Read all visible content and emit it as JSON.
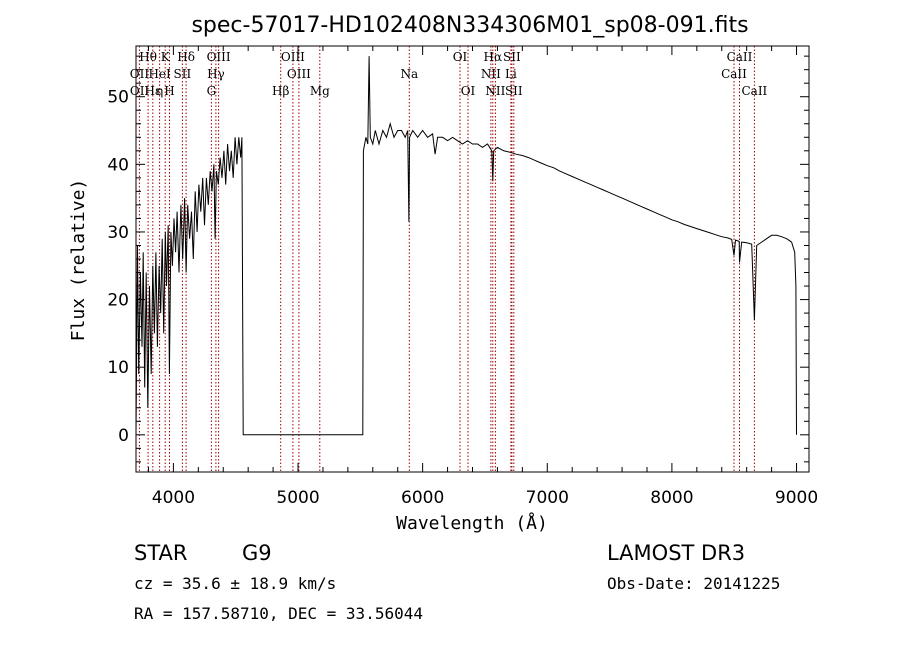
{
  "chart_data": {
    "type": "line",
    "title": "spec-57017-HD102408N334306M01_sp08-091.fits",
    "xlabel": "Wavelength (Å)",
    "ylabel": "Flux (relative)",
    "xlim": [
      3700,
      9100
    ],
    "ylim": [
      -5.5,
      57.5
    ],
    "xticks": [
      4000,
      5000,
      6000,
      7000,
      8000,
      9000
    ],
    "yticks": [
      0,
      10,
      20,
      30,
      40,
      50
    ],
    "series": [
      {
        "name": "flux",
        "points": [
          [
            3700,
            0
          ],
          [
            3712,
            28
          ],
          [
            3722,
            9
          ],
          [
            3735,
            24
          ],
          [
            3748,
            13
          ],
          [
            3758,
            27
          ],
          [
            3770,
            7
          ],
          [
            3782,
            24
          ],
          [
            3795,
            4
          ],
          [
            3808,
            22
          ],
          [
            3822,
            9
          ],
          [
            3835,
            25
          ],
          [
            3848,
            15
          ],
          [
            3860,
            27
          ],
          [
            3872,
            13
          ],
          [
            3885,
            25
          ],
          [
            3898,
            18
          ],
          [
            3910,
            29
          ],
          [
            3922,
            15
          ],
          [
            3935,
            30
          ],
          [
            3945,
            22
          ],
          [
            3958,
            31
          ],
          [
            3968,
            9
          ],
          [
            3980,
            30
          ],
          [
            3992,
            25
          ],
          [
            4005,
            32
          ],
          [
            4018,
            27
          ],
          [
            4030,
            33
          ],
          [
            4045,
            24
          ],
          [
            4060,
            34
          ],
          [
            4075,
            26
          ],
          [
            4090,
            35
          ],
          [
            4102,
            24
          ],
          [
            4115,
            34
          ],
          [
            4130,
            29
          ],
          [
            4145,
            33
          ],
          [
            4160,
            26
          ],
          [
            4175,
            36
          ],
          [
            4190,
            30
          ],
          [
            4205,
            37
          ],
          [
            4220,
            33
          ],
          [
            4235,
            38
          ],
          [
            4250,
            31
          ],
          [
            4265,
            38
          ],
          [
            4280,
            34
          ],
          [
            4295,
            39
          ],
          [
            4310,
            36
          ],
          [
            4325,
            40
          ],
          [
            4335,
            29
          ],
          [
            4345,
            39
          ],
          [
            4360,
            37
          ],
          [
            4375,
            41
          ],
          [
            4390,
            38
          ],
          [
            4405,
            42
          ],
          [
            4420,
            37
          ],
          [
            4435,
            43
          ],
          [
            4450,
            39
          ],
          [
            4465,
            42
          ],
          [
            4480,
            38
          ],
          [
            4495,
            44
          ],
          [
            4510,
            40
          ],
          [
            4525,
            44
          ],
          [
            4540,
            41
          ],
          [
            4550,
            44
          ],
          [
            4560,
            0
          ],
          [
            5520,
            0
          ],
          [
            5525,
            42
          ],
          [
            5545,
            44
          ],
          [
            5560,
            43
          ],
          [
            5570,
            56
          ],
          [
            5580,
            44
          ],
          [
            5600,
            43
          ],
          [
            5620,
            45
          ],
          [
            5650,
            43
          ],
          [
            5680,
            45
          ],
          [
            5710,
            44
          ],
          [
            5740,
            46
          ],
          [
            5770,
            44
          ],
          [
            5800,
            45
          ],
          [
            5830,
            45
          ],
          [
            5860,
            44
          ],
          [
            5880,
            45
          ],
          [
            5890,
            31.5
          ],
          [
            5895,
            44
          ],
          [
            5920,
            45
          ],
          [
            5960,
            44
          ],
          [
            6000,
            45
          ],
          [
            6040,
            44
          ],
          [
            6080,
            44.5
          ],
          [
            6100,
            41.5
          ],
          [
            6120,
            44
          ],
          [
            6160,
            44
          ],
          [
            6200,
            43.5
          ],
          [
            6240,
            44
          ],
          [
            6280,
            43.5
          ],
          [
            6320,
            43
          ],
          [
            6360,
            43.5
          ],
          [
            6400,
            43
          ],
          [
            6440,
            43
          ],
          [
            6480,
            42.5
          ],
          [
            6520,
            43
          ],
          [
            6555,
            42
          ],
          [
            6563,
            37.5
          ],
          [
            6570,
            42
          ],
          [
            6600,
            42.5
          ],
          [
            6650,
            42
          ],
          [
            6700,
            41.8
          ],
          [
            6750,
            41.5
          ],
          [
            6800,
            41.3
          ],
          [
            6850,
            41
          ],
          [
            6900,
            40.6
          ],
          [
            6950,
            40.2
          ],
          [
            7000,
            39.8
          ],
          [
            7050,
            39.5
          ],
          [
            7100,
            39
          ],
          [
            7150,
            38.6
          ],
          [
            7200,
            38.2
          ],
          [
            7250,
            37.8
          ],
          [
            7300,
            37.4
          ],
          [
            7350,
            37
          ],
          [
            7400,
            36.6
          ],
          [
            7450,
            36.2
          ],
          [
            7500,
            35.8
          ],
          [
            7550,
            35.4
          ],
          [
            7600,
            35
          ],
          [
            7650,
            34.6
          ],
          [
            7700,
            34.2
          ],
          [
            7750,
            33.8
          ],
          [
            7800,
            33.4
          ],
          [
            7850,
            33
          ],
          [
            7900,
            32.6
          ],
          [
            7950,
            32.2
          ],
          [
            8000,
            31.8
          ],
          [
            8050,
            31.5
          ],
          [
            8100,
            31.1
          ],
          [
            8150,
            30.8
          ],
          [
            8200,
            30.5
          ],
          [
            8250,
            30.2
          ],
          [
            8300,
            29.9
          ],
          [
            8350,
            29.6
          ],
          [
            8400,
            29.3
          ],
          [
            8450,
            29.1
          ],
          [
            8480,
            28.9
          ],
          [
            8498,
            26.5
          ],
          [
            8510,
            28.8
          ],
          [
            8540,
            28.6
          ],
          [
            8542,
            25.5
          ],
          [
            8560,
            28.5
          ],
          [
            8600,
            28.4
          ],
          [
            8640,
            28.2
          ],
          [
            8662,
            17
          ],
          [
            8680,
            28
          ],
          [
            8720,
            28.5
          ],
          [
            8760,
            29
          ],
          [
            8800,
            29.5
          ],
          [
            8840,
            29.5
          ],
          [
            8880,
            29.3
          ],
          [
            8920,
            29
          ],
          [
            8960,
            28.5
          ],
          [
            8985,
            27
          ],
          [
            8995,
            22
          ],
          [
            9000,
            0
          ]
        ]
      }
    ],
    "line_markers": [
      {
        "label": "Hθ",
        "x": 3797,
        "row": 0
      },
      {
        "label": "OII",
        "x": 3727,
        "row": 1
      },
      {
        "label": "OII",
        "x": 3729,
        "row": 2
      },
      {
        "label": "Hε",
        "x": 3835,
        "row": 2
      },
      {
        "label": "HeI",
        "x": 3889,
        "row": 1
      },
      {
        "label": "K",
        "x": 3934,
        "row": 0
      },
      {
        "label": "η",
        "x": 3889,
        "row": 2
      },
      {
        "label": "H",
        "x": 3969,
        "row": 2
      },
      {
        "label": "SII",
        "x": 4072,
        "row": 1
      },
      {
        "label": "Hδ",
        "x": 4102,
        "row": 0
      },
      {
        "label": "OIII",
        "x": 4363,
        "row": 0
      },
      {
        "label": "Hγ",
        "x": 4341,
        "row": 1
      },
      {
        "label": "G",
        "x": 4305,
        "row": 2
      },
      {
        "label": "OIII",
        "x": 4959,
        "row": 0
      },
      {
        "label": "OIII",
        "x": 5007,
        "row": 1
      },
      {
        "label": "Hβ",
        "x": 4861,
        "row": 2
      },
      {
        "label": "Mg",
        "x": 5175,
        "row": 2
      },
      {
        "label": "Na",
        "x": 5893,
        "row": 1
      },
      {
        "label": "OI",
        "x": 6300,
        "row": 0
      },
      {
        "label": "OI",
        "x": 6364,
        "row": 2
      },
      {
        "label": "Hα",
        "x": 6563,
        "row": 0
      },
      {
        "label": "NII",
        "x": 6548,
        "row": 1
      },
      {
        "label": "NII",
        "x": 6584,
        "row": 2
      },
      {
        "label": "SII",
        "x": 6716,
        "row": 0
      },
      {
        "label": "Li",
        "x": 6708,
        "row": 1
      },
      {
        "label": "SII",
        "x": 6731,
        "row": 2
      },
      {
        "label": "CaII",
        "x": 8542,
        "row": 0
      },
      {
        "label": "CaII",
        "x": 8498,
        "row": 1
      },
      {
        "label": "CaII",
        "x": 8662,
        "row": 2
      }
    ],
    "marker_lines": [
      3727,
      3797,
      3835,
      3889,
      3934,
      3969,
      4072,
      4102,
      4305,
      4341,
      4363,
      4861,
      4959,
      5007,
      5175,
      5893,
      6300,
      6364,
      6548,
      6563,
      6584,
      6708,
      6716,
      6731,
      8498,
      8542,
      8662
    ]
  },
  "info": {
    "object_class": "STAR",
    "subclass": "G9",
    "survey": "LAMOST DR3",
    "cz": "cz = 35.6 ± 18.9 km/s",
    "obs_date": "Obs-Date: 20141225",
    "coords": "RA = 157.58710, DEC =  33.56044"
  },
  "colors": {
    "marker_line": "#a00000",
    "spectrum": "#000000"
  }
}
